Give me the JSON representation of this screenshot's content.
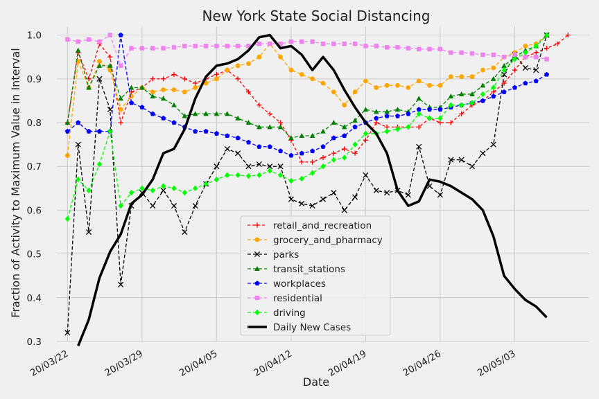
{
  "chart_data": {
    "type": "line",
    "title": "New York State Social Distancing",
    "xlabel": "Date",
    "ylabel": "Fraction of Activity to Maximum Value in Interval",
    "ylim": [
      0.3,
      1.02
    ],
    "xlim": [
      "2020-03-21",
      "2020-05-10"
    ],
    "yticks": [
      0.3,
      0.4,
      0.5,
      0.6,
      0.7,
      0.8,
      0.9,
      1.0
    ],
    "ytick_labels": [
      "0.3",
      "0.4",
      "0.5",
      "0.6",
      "0.7",
      "0.8",
      "0.9",
      "1.0"
    ],
    "xticks": [
      "2020-03-22",
      "2020-03-29",
      "2020-04-05",
      "2020-04-12",
      "2020-04-19",
      "2020-04-26",
      "2020-05-03"
    ],
    "xtick_labels": [
      "20/03/22",
      "20/03/29",
      "20/04/05",
      "20/04/12",
      "20/04/19",
      "20/04/26",
      "20/05/03"
    ],
    "grid": true,
    "legend_position": "lower-center",
    "mobility_dates": [
      "2020-03-22",
      "2020-03-23",
      "2020-03-24",
      "2020-03-25",
      "2020-03-26",
      "2020-03-27",
      "2020-03-28",
      "2020-03-29",
      "2020-03-30",
      "2020-03-31",
      "2020-04-01",
      "2020-04-02",
      "2020-04-03",
      "2020-04-04",
      "2020-04-05",
      "2020-04-06",
      "2020-04-07",
      "2020-04-08",
      "2020-04-09",
      "2020-04-10",
      "2020-04-11",
      "2020-04-12",
      "2020-04-13",
      "2020-04-14",
      "2020-04-15",
      "2020-04-16",
      "2020-04-17",
      "2020-04-18",
      "2020-04-19",
      "2020-04-20",
      "2020-04-21",
      "2020-04-22",
      "2020-04-23",
      "2020-04-24",
      "2020-04-25",
      "2020-04-26",
      "2020-04-27",
      "2020-04-28",
      "2020-04-29",
      "2020-04-30",
      "2020-05-01",
      "2020-05-02",
      "2020-05-03",
      "2020-05-04",
      "2020-05-05",
      "2020-05-06",
      "2020-05-07",
      "2020-05-08",
      "2020-05-09"
    ],
    "series": [
      {
        "name": "retail_and_recreation",
        "color": "#ff0000",
        "dash": "4,3",
        "marker": "plus",
        "values": [
          0.8,
          0.96,
          0.9,
          0.98,
          0.95,
          0.8,
          0.87,
          0.88,
          0.9,
          0.9,
          0.91,
          0.9,
          0.89,
          0.9,
          0.91,
          0.92,
          0.9,
          0.87,
          0.84,
          0.82,
          0.8,
          0.76,
          0.71,
          0.71,
          0.72,
          0.73,
          0.74,
          0.73,
          0.76,
          0.8,
          0.79,
          0.79,
          0.79,
          0.79,
          0.81,
          0.8,
          0.8,
          0.82,
          0.84,
          0.85,
          0.87,
          0.89,
          0.92,
          0.95,
          0.96,
          0.97,
          0.98,
          1.0,
          null
        ]
      },
      {
        "name": "grocery_and_pharmacy",
        "color": "#ffa500",
        "dash": "5,3",
        "marker": "circle",
        "values": [
          0.725,
          0.94,
          0.88,
          0.94,
          0.92,
          0.83,
          0.86,
          0.88,
          0.87,
          0.875,
          0.875,
          0.87,
          0.88,
          0.89,
          0.9,
          0.92,
          0.93,
          0.935,
          0.95,
          0.98,
          0.95,
          0.92,
          0.91,
          0.9,
          0.89,
          0.87,
          0.84,
          0.87,
          0.895,
          0.88,
          0.885,
          0.885,
          0.88,
          0.895,
          0.885,
          0.885,
          0.905,
          0.905,
          0.905,
          0.92,
          0.925,
          0.95,
          0.96,
          0.975,
          0.98,
          1.0,
          null,
          null,
          null
        ]
      },
      {
        "name": "parks",
        "color": "#000000",
        "dash": "5,3",
        "marker": "x",
        "values": [
          0.32,
          0.75,
          0.55,
          0.9,
          0.83,
          0.43,
          0.61,
          0.64,
          0.61,
          0.645,
          0.61,
          0.55,
          0.61,
          0.66,
          0.7,
          0.74,
          0.73,
          0.7,
          0.705,
          0.7,
          0.7,
          0.625,
          0.615,
          0.61,
          0.625,
          0.64,
          0.6,
          0.63,
          0.68,
          0.645,
          0.64,
          0.645,
          0.635,
          0.745,
          0.655,
          0.635,
          0.715,
          0.715,
          0.7,
          0.73,
          0.75,
          0.91,
          0.955,
          0.925,
          0.92,
          1.0,
          null,
          null,
          null
        ]
      },
      {
        "name": "transit_stations",
        "color": "#008000",
        "dash": "5,3",
        "marker": "triangle",
        "values": [
          0.8,
          0.965,
          0.88,
          0.93,
          0.93,
          0.855,
          0.88,
          0.88,
          0.86,
          0.855,
          0.84,
          0.815,
          0.82,
          0.82,
          0.82,
          0.82,
          0.81,
          0.8,
          0.79,
          0.79,
          0.79,
          0.765,
          0.77,
          0.77,
          0.78,
          0.8,
          0.79,
          0.805,
          0.83,
          0.825,
          0.825,
          0.83,
          0.825,
          0.855,
          0.835,
          0.835,
          0.86,
          0.865,
          0.865,
          0.885,
          0.9,
          0.93,
          0.95,
          0.965,
          0.975,
          1.0,
          null,
          null,
          null
        ]
      },
      {
        "name": "workplaces",
        "color": "#0000ff",
        "dash": "5,3",
        "marker": "pentagon",
        "values": [
          0.78,
          0.8,
          0.78,
          0.78,
          0.78,
          1.0,
          0.845,
          0.835,
          0.82,
          0.81,
          0.8,
          0.79,
          0.78,
          0.78,
          0.775,
          0.77,
          0.765,
          0.755,
          0.745,
          0.745,
          0.735,
          0.725,
          0.73,
          0.735,
          0.745,
          0.765,
          0.77,
          0.79,
          0.8,
          0.81,
          0.815,
          0.815,
          0.82,
          0.83,
          0.83,
          0.83,
          0.835,
          0.84,
          0.845,
          0.85,
          0.86,
          0.87,
          0.88,
          0.89,
          0.895,
          0.91,
          null,
          null,
          null
        ]
      },
      {
        "name": "residential",
        "color": "#ee82ee",
        "dash": "5,3",
        "marker": "square",
        "values": [
          0.99,
          0.985,
          0.99,
          0.985,
          1.0,
          0.93,
          0.97,
          0.97,
          0.97,
          0.97,
          0.972,
          0.975,
          0.975,
          0.975,
          0.975,
          0.975,
          0.975,
          0.975,
          0.98,
          0.98,
          0.98,
          0.985,
          0.985,
          0.985,
          0.98,
          0.98,
          0.98,
          0.98,
          0.975,
          0.975,
          0.972,
          0.972,
          0.97,
          0.968,
          0.968,
          0.968,
          0.96,
          0.96,
          0.958,
          0.955,
          0.955,
          0.95,
          0.955,
          0.95,
          0.95,
          0.945,
          null,
          null,
          null
        ]
      },
      {
        "name": "driving",
        "color": "#00ff00",
        "dash": "5,3",
        "marker": "diamond",
        "values": [
          0.58,
          0.67,
          0.645,
          0.705,
          0.78,
          0.61,
          0.64,
          0.65,
          0.645,
          0.655,
          0.65,
          0.64,
          0.65,
          0.66,
          0.67,
          0.68,
          0.68,
          0.678,
          0.68,
          0.69,
          0.68,
          0.667,
          0.672,
          0.685,
          0.7,
          0.715,
          0.72,
          0.75,
          0.775,
          0.775,
          0.78,
          0.785,
          0.79,
          0.82,
          0.81,
          0.81,
          0.84,
          0.84,
          0.845,
          0.865,
          0.88,
          0.92,
          0.945,
          0.96,
          0.975,
          1.0,
          null,
          null,
          null
        ]
      },
      {
        "name": "Daily New Cases",
        "color": "#000000",
        "dash": "",
        "marker": "none",
        "width": 3.5,
        "values": [
          null,
          0.29,
          0.35,
          0.445,
          0.505,
          0.545,
          0.615,
          0.635,
          0.67,
          0.73,
          0.74,
          0.785,
          0.855,
          0.905,
          0.93,
          0.935,
          0.945,
          0.965,
          0.995,
          1.0,
          0.97,
          0.975,
          0.955,
          0.92,
          0.95,
          0.92,
          0.875,
          0.835,
          0.8,
          0.775,
          0.73,
          0.645,
          0.61,
          0.62,
          0.67,
          0.665,
          0.655,
          0.64,
          0.625,
          0.6,
          0.54,
          0.45,
          0.42,
          0.395,
          0.38,
          0.355,
          null,
          null,
          null
        ]
      }
    ]
  }
}
